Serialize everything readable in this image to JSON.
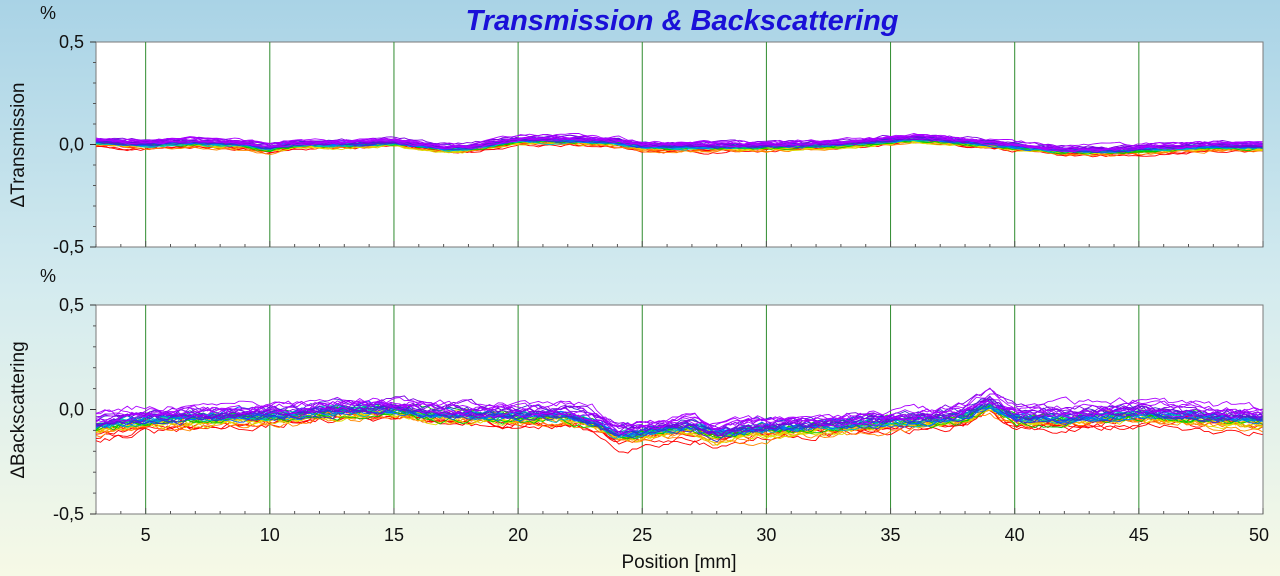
{
  "chart_data": [
    {
      "type": "line",
      "title": "Transmission & Backscattering",
      "ylabel": "ΔTransmission",
      "yunit": "%",
      "ylim": [
        -0.5,
        0.5
      ],
      "yticks": [
        "0,5",
        "0,0",
        "-0,5"
      ],
      "ytick_values": [
        0.5,
        0.0,
        -0.5
      ],
      "xlim": [
        3,
        50
      ],
      "grid": true,
      "grid_color": "#2e8b2e",
      "n_series": 40,
      "series_colors": [
        "#ff0000",
        "#ff8800",
        "#dddd00",
        "#00cc00",
        "#00bbbb",
        "#0066ff",
        "#3333cc",
        "#7a00e0",
        "#aa00ff"
      ],
      "profile": {
        "x": [
          3,
          5,
          7,
          9,
          10,
          11,
          13,
          15,
          17,
          18,
          20,
          22,
          24,
          25,
          27,
          30,
          33,
          35,
          36,
          37,
          38,
          40,
          42,
          44,
          46,
          48,
          50
        ],
        "y": [
          0.01,
          0.0,
          0.01,
          0.0,
          -0.02,
          0.0,
          0.0,
          0.01,
          -0.02,
          -0.02,
          0.02,
          0.02,
          0.01,
          -0.01,
          -0.01,
          -0.01,
          0.0,
          0.02,
          0.03,
          0.02,
          0.01,
          -0.01,
          -0.03,
          -0.03,
          -0.02,
          -0.01,
          -0.01
        ]
      },
      "spread": 0.025
    },
    {
      "type": "line",
      "ylabel": "ΔBackscattering",
      "yunit": "%",
      "ylim": [
        -0.5,
        0.5
      ],
      "yticks": [
        "0,5",
        "0,0",
        "-0,5"
      ],
      "ytick_values": [
        0.5,
        0.0,
        -0.5
      ],
      "xlim": [
        3,
        50
      ],
      "xticks": [
        5,
        10,
        15,
        20,
        25,
        30,
        35,
        40,
        45,
        50
      ],
      "xlabel": "Position [mm]",
      "grid": true,
      "grid_color": "#2e8b2e",
      "n_series": 40,
      "series_colors": [
        "#ff0000",
        "#ff8800",
        "#dddd00",
        "#00cc00",
        "#00bbbb",
        "#0066ff",
        "#3333cc",
        "#7a00e0",
        "#aa00ff"
      ],
      "profile": {
        "x": [
          3,
          5,
          7,
          10,
          12,
          15,
          17,
          20,
          22,
          23,
          24,
          25,
          27,
          28,
          29,
          30,
          32,
          35,
          37,
          38,
          39,
          40,
          42,
          45,
          47,
          48,
          50
        ],
        "y": [
          -0.08,
          -0.05,
          -0.04,
          -0.03,
          -0.01,
          0.0,
          -0.02,
          -0.03,
          -0.03,
          -0.06,
          -0.12,
          -0.11,
          -0.08,
          -0.12,
          -0.1,
          -0.09,
          -0.08,
          -0.06,
          -0.05,
          -0.03,
          0.03,
          -0.04,
          -0.04,
          -0.02,
          -0.03,
          -0.04,
          -0.05
        ]
      },
      "spread": 0.06
    }
  ]
}
